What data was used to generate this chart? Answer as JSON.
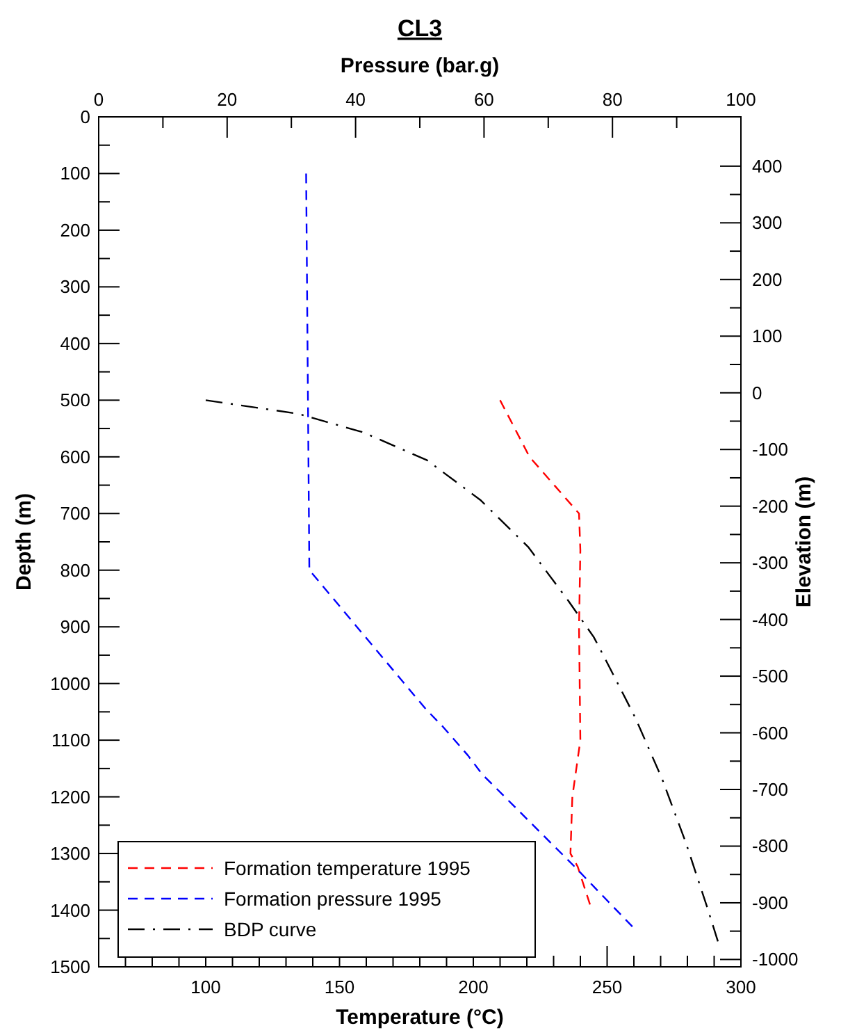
{
  "chart_data": {
    "type": "line",
    "title": "CL3",
    "xlabel": "Temperature (°C)",
    "x2label": "Pressure (bar.g)",
    "ylabel": "Depth (m)",
    "y2label": "Elevation (m)",
    "xlim": [
      60,
      300
    ],
    "xticks": [
      {
        "value": 70,
        "label": null
      },
      {
        "value": 80,
        "label": null
      },
      {
        "value": 90,
        "label": null
      },
      100,
      {
        "value": 110,
        "label": null
      },
      {
        "value": 120,
        "label": null
      },
      {
        "value": 130,
        "label": null
      },
      {
        "value": 140,
        "label": null
      },
      150,
      {
        "value": 160,
        "label": null
      },
      {
        "value": 170,
        "label": null
      },
      {
        "value": 180,
        "label": null
      },
      {
        "value": 190,
        "label": null
      },
      200,
      {
        "value": 210,
        "label": null
      },
      {
        "value": 220,
        "label": null
      },
      {
        "value": 230,
        "label": null
      },
      {
        "value": 240,
        "label": null
      },
      250,
      {
        "value": 260,
        "label": null
      },
      {
        "value": 270,
        "label": null
      },
      {
        "value": 280,
        "label": null
      },
      {
        "value": 290,
        "label": null
      },
      300
    ],
    "x2lim": [
      0,
      100
    ],
    "x2ticks": [
      0,
      {
        "value": 10,
        "label": null
      },
      20,
      {
        "value": 30,
        "label": null
      },
      40,
      {
        "value": 50,
        "label": null
      },
      60,
      {
        "value": 70,
        "label": null
      },
      80,
      {
        "value": 90,
        "label": null
      },
      100
    ],
    "ylim": [
      1500,
      0
    ],
    "yticks": [
      0,
      {
        "value": 50,
        "label": null
      },
      100,
      {
        "value": 150,
        "label": null
      },
      200,
      {
        "value": 250,
        "label": null
      },
      300,
      {
        "value": 350,
        "label": null
      },
      400,
      {
        "value": 450,
        "label": null
      },
      500,
      {
        "value": 550,
        "label": null
      },
      600,
      {
        "value": 650,
        "label": null
      },
      700,
      {
        "value": 750,
        "label": null
      },
      800,
      {
        "value": 850,
        "label": null
      },
      900,
      {
        "value": 950,
        "label": null
      },
      1000,
      {
        "value": 1050,
        "label": null
      },
      1100,
      {
        "value": 1150,
        "label": null
      },
      1200,
      {
        "value": 1250,
        "label": null
      },
      1300,
      {
        "value": 1350,
        "label": null
      },
      1400,
      {
        "value": 1450,
        "label": null
      },
      1500
    ],
    "y2lim": [
      -1013,
      487
    ],
    "y2ticks": [
      400,
      {
        "value": 350,
        "label": null
      },
      300,
      {
        "value": 250,
        "label": null
      },
      200,
      {
        "value": 150,
        "label": null
      },
      100,
      {
        "value": 50,
        "label": null
      },
      0,
      {
        "value": -50,
        "label": null
      },
      -100,
      {
        "value": -150,
        "label": null
      },
      -200,
      {
        "value": -250,
        "label": null
      },
      -300,
      {
        "value": -350,
        "label": null
      },
      -400,
      {
        "value": -450,
        "label": null
      },
      -500,
      {
        "value": -550,
        "label": null
      },
      -600,
      {
        "value": -650,
        "label": null
      },
      -700,
      {
        "value": -750,
        "label": null
      },
      -800,
      {
        "value": -850,
        "label": null
      },
      -900,
      {
        "value": -950,
        "label": null
      },
      -1000
    ],
    "grid": false,
    "legend": "bottom left",
    "marker": "none",
    "series": [
      {
        "name": "Formation temperature 1995",
        "color": "#ff0000",
        "line_style": "dashed",
        "x": [
          210,
          221,
          239.5,
          240,
          239.5,
          240,
          237,
          236.3,
          239,
          243.6
        ],
        "values": [
          500,
          600,
          700,
          765,
          900,
          1100,
          1200,
          1300,
          1323,
          1390
        ]
      },
      {
        "name": "Formation pressure 1995",
        "color": "#0000ff",
        "line_style": "dashed",
        "axis": "x2",
        "x": [
          32.3,
          32.8,
          34.3,
          40.2,
          51,
          53.5,
          57.5,
          59.7,
          74,
          83.1
        ],
        "values": [
          100,
          800,
          820,
          900,
          1046,
          1075,
          1127,
          1160,
          1322,
          1429
        ]
      },
      {
        "name": "BDP curve",
        "color": "#000000",
        "line_style": "dashdot",
        "x": [
          100,
          134.6,
          159,
          182.7,
          202.6,
          220.5,
          235.5,
          245,
          249,
          260.6,
          270.6,
          279.5,
          287.4,
          291.4
        ],
        "values": [
          500,
          524,
          557,
          606,
          676,
          759,
          854,
          918,
          954,
          1061,
          1169,
          1282,
          1395,
          1455
        ]
      }
    ]
  }
}
